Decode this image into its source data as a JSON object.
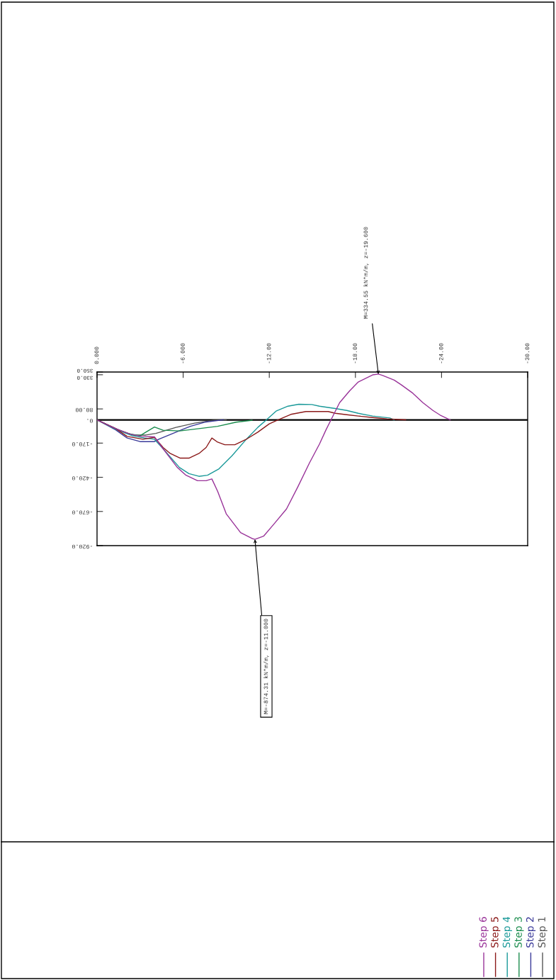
{
  "chart_data": {
    "type": "line",
    "xlim": [
      0,
      -30
    ],
    "ylim": [
      -920,
      350
    ],
    "xticks": [
      {
        "value": 0,
        "label": "0.000"
      },
      {
        "value": -6,
        "label": "-6.000"
      },
      {
        "value": -12,
        "label": "-12.00"
      },
      {
        "value": -18,
        "label": "-18.00"
      },
      {
        "value": -24,
        "label": "-24.00"
      },
      {
        "value": -30,
        "label": "-30.00"
      }
    ],
    "yticks": [
      {
        "value": 350,
        "label": "350.0"
      },
      {
        "value": 330,
        "label": "330.0"
      },
      {
        "value": 80,
        "label": "80.00"
      },
      {
        "value": 0,
        "label": "0."
      },
      {
        "value": -170,
        "label": "-170.0"
      },
      {
        "value": -420,
        "label": "-420.0"
      },
      {
        "value": -670,
        "label": "-670.0"
      },
      {
        "value": -920,
        "label": "-920.0"
      }
    ],
    "grid": false,
    "legend": "bottom right",
    "marker": "none",
    "line_style": "solid",
    "ref_lines": [
      {
        "axis": "y",
        "value": 0,
        "label": null,
        "color": "#000000"
      }
    ],
    "annotations": [
      {
        "text": "M=334.55 kN*m/m, z=-19.600",
        "x": -19.6,
        "y": 334.55
      },
      {
        "text": "M=-874.31 kN*m/m, z=-11.000",
        "x": -11.0,
        "y": -874.31
      }
    ],
    "series": [
      {
        "name": "Step 1",
        "color": "#555555",
        "x": [
          0,
          -1.5,
          -2.5,
          -3.4,
          -4.1,
          -5.5,
          -6.8,
          -8.1,
          -9.0
        ],
        "values": [
          0,
          -73,
          -111,
          -111,
          -99,
          -55,
          -24,
          -3,
          0
        ]
      },
      {
        "name": "Step 2",
        "color": "#3a3a99",
        "x": [
          0,
          -1.3,
          -2.1,
          -3.0,
          -4.0,
          -4.3,
          -5.5,
          -6.5,
          -7.5,
          -8.8
        ],
        "values": [
          0,
          -73,
          -133,
          -159,
          -159,
          -142,
          -90,
          -47,
          -17,
          0
        ]
      },
      {
        "name": "Step 3",
        "color": "#1a8c4d",
        "x": [
          0,
          -1.3,
          -2.1,
          -3.0,
          -3.4,
          -4.0,
          -4.6,
          -5.75,
          -7.1,
          -8.4,
          -9.7,
          -10.8
        ],
        "values": [
          0,
          -64,
          -99,
          -116,
          -90,
          -52,
          -76,
          -81,
          -64,
          -47,
          -17,
          -3
        ]
      },
      {
        "name": "Step 4",
        "color": "#1a9999",
        "x": [
          0,
          -1.3,
          -2.45,
          -3.3,
          -4.0,
          -4.6,
          -5.75,
          -6.4,
          -7.1,
          -7.7,
          -8.5,
          -9.4,
          -10.4,
          -11.2,
          -11.8,
          -12.5,
          -13.3,
          -14.05,
          -14.96,
          -15.5,
          -16.6,
          -17.4,
          -18.2,
          -19.2,
          -20.4,
          -20.7
        ],
        "values": [
          0,
          -69,
          -116,
          -133,
          -142,
          -211,
          -349,
          -393,
          -413,
          -405,
          -358,
          -263,
          -142,
          -55,
          0,
          66,
          100,
          114,
          112,
          100,
          83,
          69,
          48,
          28,
          14,
          0
        ]
      },
      {
        "name": "Step 5",
        "color": "#8b1a1a",
        "x": [
          0,
          -1.3,
          -2.1,
          -3.2,
          -4.0,
          -4.6,
          -5.1,
          -5.8,
          -6.4,
          -7.1,
          -7.6,
          -8.0,
          -8.4,
          -8.9,
          -9.6,
          -10.35,
          -11.2,
          -12.0,
          -12.6,
          -13.5,
          -14.55,
          -16.1,
          -16.6,
          -17.4,
          -18.2,
          -19.2,
          -20.2,
          -21.5
        ],
        "values": [
          0,
          -64,
          -121,
          -142,
          -128,
          -202,
          -246,
          -280,
          -280,
          -246,
          -202,
          -133,
          -163,
          -182,
          -182,
          -145,
          -90,
          -29,
          0,
          40,
          61,
          61,
          48,
          38,
          28,
          17,
          7,
          0
        ]
      },
      {
        "name": "Step 6",
        "color": "#993399",
        "x": [
          0,
          -1.3,
          -2.3,
          -3.1,
          -4.0,
          -4.6,
          -5.6,
          -6.2,
          -7.0,
          -7.6,
          -8.0,
          -8.4,
          -9.0,
          -10.0,
          -10.8,
          -11.0,
          -11.6,
          -12.3,
          -13.2,
          -14.0,
          -14.8,
          -15.5,
          -15.95,
          -16.3,
          -16.9,
          -17.6,
          -18.2,
          -19.2,
          -19.6,
          -19.9,
          -20.7,
          -21.2,
          -22.0,
          -22.7,
          -23.4,
          -23.9,
          -24.6
        ],
        "values": [
          0,
          -64,
          -104,
          -121,
          -124,
          -211,
          -349,
          -405,
          -445,
          -445,
          -432,
          -522,
          -687,
          -825,
          -868,
          -874,
          -851,
          -765,
          -652,
          -488,
          -315,
          -176,
          -73,
          0,
          126,
          213,
          277,
          329,
          335,
          325,
          291,
          256,
          195,
          126,
          69,
          35,
          0
        ]
      }
    ]
  }
}
